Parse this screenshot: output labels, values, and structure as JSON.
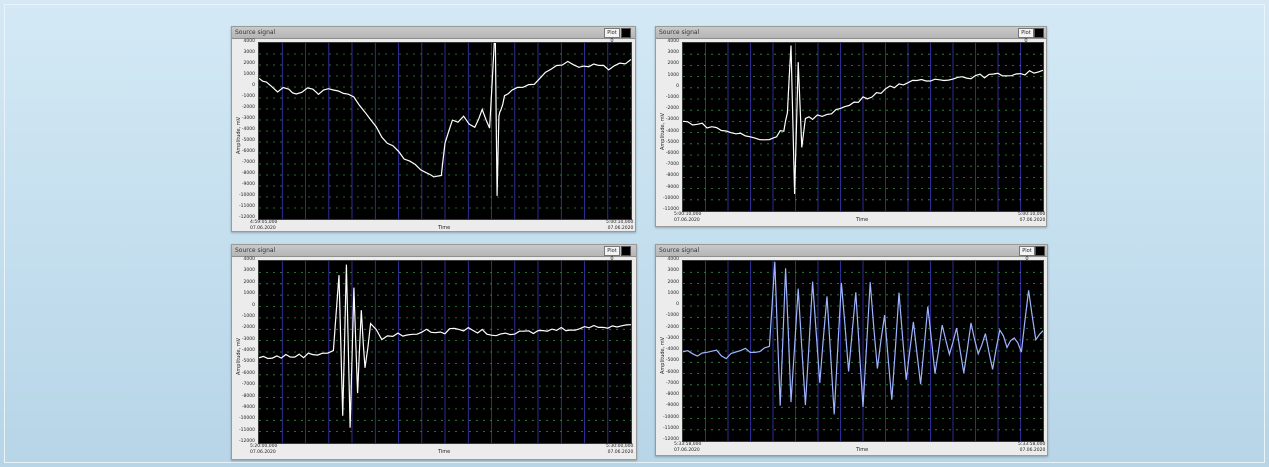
{
  "colors": {
    "plot_bg": "#000000",
    "grid_vertical": "#3a38b8",
    "grid_horizontal": "#2e8f3c",
    "trace": "#ffffff",
    "trace_p4": "#9fb4ff"
  },
  "panels": [
    {
      "id": "p1",
      "title": "Source signal",
      "plot_label": "Plot 0",
      "ylabel": "Amplitude, mV",
      "xlabel": "Time",
      "yticks": [
        "4000",
        "3000",
        "2000",
        "1000",
        "0",
        "-1000",
        "-2000",
        "-3000",
        "-4000",
        "-5000",
        "-6000",
        "-7000",
        "-8000",
        "-9000",
        "-10000",
        "-11000",
        "-12000"
      ],
      "x_start": "4:59:05,000\n07.06.2020",
      "x_end": "5:00:10,000\n07.06.2020",
      "chart_data": {
        "type": "line",
        "ylim": [
          -12000,
          4000
        ],
        "x": [
          0,
          0.02,
          0.05,
          0.08,
          0.1,
          0.13,
          0.16,
          0.2,
          0.24,
          0.27,
          0.3,
          0.33,
          0.36,
          0.39,
          0.42,
          0.45,
          0.47,
          0.49,
          0.5,
          0.52,
          0.55,
          0.58,
          0.6,
          0.62,
          0.635,
          0.64,
          0.645,
          0.65,
          0.66,
          0.68,
          0.71,
          0.74,
          0.77,
          0.8,
          0.83,
          0.86,
          0.9,
          0.94,
          0.97,
          1.0
        ],
        "y": [
          700,
          300,
          -300,
          -100,
          -600,
          -200,
          -500,
          -100,
          -700,
          -1500,
          -2800,
          -4400,
          -5500,
          -6500,
          -7200,
          -7800,
          -8200,
          -8000,
          -5000,
          -3200,
          -2800,
          -3600,
          -2200,
          -3800,
          5800,
          -10000,
          -2500,
          -2000,
          -900,
          -300,
          -100,
          300,
          1400,
          1800,
          2200,
          1700,
          2100,
          1700,
          2000,
          2500
        ]
      }
    },
    {
      "id": "p2",
      "title": "Source signal",
      "plot_label": "Plot 0",
      "ylabel": "Amplitude, mV",
      "xlabel": "Time",
      "yticks": [
        "4000",
        "3000",
        "2000",
        "1000",
        "0",
        "-1000",
        "-2000",
        "-3000",
        "-4000",
        "-5000",
        "-6000",
        "-7000",
        "-8000",
        "-9000",
        "-10000",
        "-11000"
      ],
      "x_start": "5:00:10,000\n07.06.2020",
      "x_end": "5:00:10,000\n07.06.2020",
      "chart_data": {
        "type": "line",
        "ylim": [
          -12000,
          4000
        ],
        "x": [
          0,
          0.04,
          0.08,
          0.12,
          0.16,
          0.2,
          0.24,
          0.26,
          0.28,
          0.29,
          0.3,
          0.31,
          0.32,
          0.33,
          0.34,
          0.36,
          0.4,
          0.45,
          0.5,
          0.55,
          0.6,
          0.65,
          0.7,
          0.75,
          0.8,
          0.85,
          0.9,
          0.95,
          1.0
        ],
        "y": [
          -3500,
          -3700,
          -4000,
          -4400,
          -4700,
          -5100,
          -5200,
          -4800,
          -4200,
          -2500,
          3800,
          -10500,
          2000,
          -6000,
          -3000,
          -3200,
          -2700,
          -2100,
          -1300,
          -600,
          100,
          300,
          500,
          700,
          800,
          900,
          1000,
          1100,
          1400
        ]
      }
    },
    {
      "id": "p3",
      "title": "Source signal",
      "plot_label": "Plot 0",
      "ylabel": "Amplitude, mV",
      "xlabel": "Time",
      "yticks": [
        "4000",
        "3000",
        "2000",
        "1000",
        "0",
        "-1000",
        "-2000",
        "-3000",
        "-4000",
        "-5000",
        "-6000",
        "-7000",
        "-8000",
        "-9000",
        "-10000",
        "-11000",
        "-12000"
      ],
      "x_start": "5:20:00,000\n07.06.2020",
      "x_end": "5:30:00,000\n07.06.2020",
      "chart_data": {
        "type": "line",
        "ylim": [
          -12000,
          4000
        ],
        "x": [
          0,
          0.06,
          0.12,
          0.17,
          0.2,
          0.215,
          0.225,
          0.235,
          0.245,
          0.255,
          0.265,
          0.275,
          0.285,
          0.3,
          0.33,
          0.36,
          0.4,
          0.45,
          0.5,
          0.55,
          0.6,
          0.65,
          0.7,
          0.75,
          0.8,
          0.9,
          1.0
        ],
        "y": [
          -4500,
          -4400,
          -4300,
          -4100,
          -3800,
          2800,
          -9500,
          3500,
          -10500,
          1500,
          -7500,
          -500,
          -5500,
          -1500,
          -2800,
          -2500,
          -2400,
          -2200,
          -2200,
          -2000,
          -2200,
          -2600,
          -2300,
          -2200,
          -2000,
          -1800,
          -1600
        ]
      }
    },
    {
      "id": "p4",
      "title": "Source signal",
      "plot_label": "Plot 0",
      "ylabel": "Amplitude, mV",
      "xlabel": "Time",
      "yticks": [
        "4000",
        "3000",
        "2000",
        "1000",
        "0",
        "-1000",
        "-2000",
        "-3000",
        "-4000",
        "-5000",
        "-6000",
        "-7000",
        "-8000",
        "-9000",
        "-10000",
        "-11000",
        "-12000"
      ],
      "x_start": "5:33:58,000\n07.06.2020",
      "x_end": "5:33:58,000\n07.06.2020",
      "chart_data": {
        "type": "line",
        "ylim": [
          -12000,
          4000
        ],
        "x": [
          0,
          0.04,
          0.08,
          0.12,
          0.16,
          0.2,
          0.24,
          0.255,
          0.27,
          0.285,
          0.3,
          0.32,
          0.34,
          0.36,
          0.38,
          0.4,
          0.42,
          0.44,
          0.46,
          0.48,
          0.5,
          0.52,
          0.54,
          0.56,
          0.58,
          0.6,
          0.62,
          0.64,
          0.66,
          0.68,
          0.7,
          0.72,
          0.74,
          0.76,
          0.78,
          0.8,
          0.82,
          0.84,
          0.86,
          0.88,
          0.9,
          0.92,
          0.94,
          0.96,
          0.98,
          1.0
        ],
        "y": [
          -4000,
          -4300,
          -3900,
          -4500,
          -3800,
          -4200,
          -3500,
          4000,
          -9000,
          3500,
          -8500,
          1500,
          -9000,
          2000,
          -7000,
          1000,
          -9500,
          2200,
          -6000,
          1200,
          -9000,
          2000,
          -5500,
          -800,
          -8500,
          1000,
          -6500,
          -1500,
          -7000,
          0,
          -6000,
          -1800,
          -4500,
          -2000,
          -6000,
          -1500,
          -4200,
          -2500,
          -5500,
          -2000,
          -3500,
          -2800,
          -4000,
          1500,
          -3000,
          -2200
        ]
      }
    }
  ]
}
